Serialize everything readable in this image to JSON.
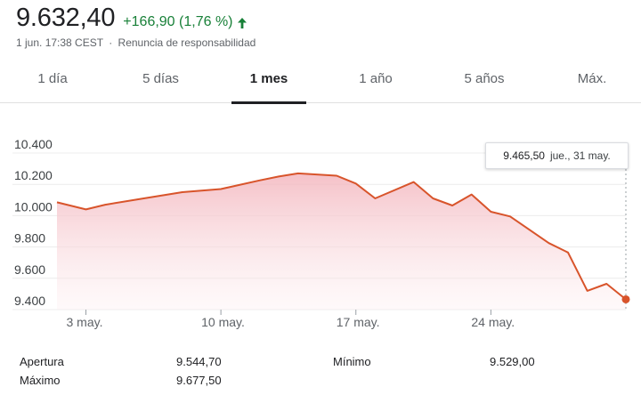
{
  "quote": {
    "price": "9.632,40",
    "change": "+166,90 (1,76 %)",
    "change_direction_icon": "arrow-up-icon",
    "timestamp": "1 jun. 17:38 CEST",
    "separator": "·",
    "disclaimer": "Renuncia de responsabilidad",
    "positive_color": "#188038"
  },
  "tabs": [
    {
      "label": "1 día",
      "active": false
    },
    {
      "label": "5 días",
      "active": false
    },
    {
      "label": "1 mes",
      "active": true
    },
    {
      "label": "1 año",
      "active": false
    },
    {
      "label": "5 años",
      "active": false
    },
    {
      "label": "Máx.",
      "active": false
    }
  ],
  "tooltip": {
    "value": "9.465,50",
    "date": "jue., 31 may."
  },
  "stats": {
    "open_label": "Apertura",
    "open_value": "9.544,70",
    "high_label": "Máximo",
    "high_value": "9.677,50",
    "low_label": "Mínimo",
    "low_value": "9.529,00"
  },
  "chart_data": {
    "type": "area",
    "y_tick_labels": [
      "10.400",
      "10.200",
      "10.000",
      "9.800",
      "9.600",
      "9.400"
    ],
    "y_ticks": [
      10400,
      10200,
      10000,
      9800,
      9600,
      9400
    ],
    "ylim": [
      9400,
      10400
    ],
    "x_tick_labels": [
      "3 may.",
      "10 may.",
      "17 may.",
      "24 may."
    ],
    "x_tick_days": [
      3,
      10,
      17,
      24
    ],
    "xlim": [
      1.5,
      31
    ],
    "grid": true,
    "line_color": "#d8542b",
    "fill_color": "#f6c9ce",
    "x": [
      1.5,
      3,
      4,
      6,
      8,
      10,
      12,
      13,
      14,
      16,
      17,
      18,
      20,
      21,
      22,
      23,
      24,
      25,
      27,
      28,
      29,
      30,
      31
    ],
    "y": [
      10085,
      10040,
      10070,
      10110,
      10150,
      10170,
      10225,
      10250,
      10270,
      10255,
      10205,
      10110,
      10215,
      10110,
      10065,
      10135,
      10025,
      9995,
      9825,
      9765,
      9520,
      9565,
      9465.5
    ]
  }
}
